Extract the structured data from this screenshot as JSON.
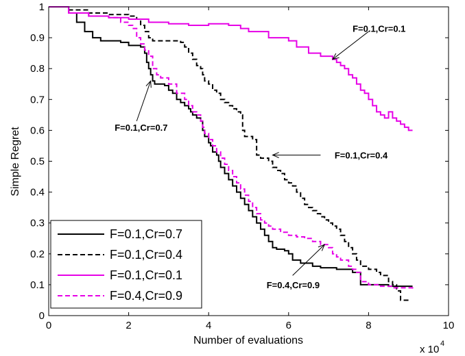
{
  "chart_data": {
    "type": "line",
    "title": "",
    "xlabel": "Number of evaluations",
    "ylabel": "Simple Regret",
    "x_multiplier_label": "x 10",
    "x_multiplier_exp": "4",
    "xlim": [
      0,
      10
    ],
    "ylim": [
      0,
      1
    ],
    "xticks": [
      "0",
      "2",
      "4",
      "6",
      "8",
      "10"
    ],
    "yticks": [
      "0",
      "0.1",
      "0.2",
      "0.3",
      "0.4",
      "0.5",
      "0.6",
      "0.7",
      "0.8",
      "0.9",
      "1"
    ],
    "grid": false,
    "legend_position": "bottom-left",
    "series": [
      {
        "name": "F=0.1,Cr=0.7",
        "color": "#000000",
        "dash": "solid",
        "points": [
          [
            0,
            1
          ],
          [
            0.5,
            0.98
          ],
          [
            0.7,
            0.95
          ],
          [
            0.9,
            0.92
          ],
          [
            1.1,
            0.9
          ],
          [
            1.3,
            0.89
          ],
          [
            1.8,
            0.885
          ],
          [
            2.0,
            0.875
          ],
          [
            2.3,
            0.87
          ],
          [
            2.4,
            0.85
          ],
          [
            2.45,
            0.82
          ],
          [
            2.5,
            0.8
          ],
          [
            2.55,
            0.78
          ],
          [
            2.6,
            0.76
          ],
          [
            2.65,
            0.75
          ],
          [
            2.9,
            0.745
          ],
          [
            3.0,
            0.73
          ],
          [
            3.1,
            0.72
          ],
          [
            3.2,
            0.7
          ],
          [
            3.3,
            0.69
          ],
          [
            3.4,
            0.68
          ],
          [
            3.5,
            0.67
          ],
          [
            3.55,
            0.66
          ],
          [
            3.6,
            0.65
          ],
          [
            3.7,
            0.64
          ],
          [
            3.8,
            0.63
          ],
          [
            3.85,
            0.6
          ],
          [
            3.9,
            0.58
          ],
          [
            4.0,
            0.56
          ],
          [
            4.05,
            0.55
          ],
          [
            4.1,
            0.53
          ],
          [
            4.2,
            0.52
          ],
          [
            4.25,
            0.5
          ],
          [
            4.3,
            0.48
          ],
          [
            4.4,
            0.46
          ],
          [
            4.5,
            0.44
          ],
          [
            4.6,
            0.42
          ],
          [
            4.7,
            0.4
          ],
          [
            4.8,
            0.38
          ],
          [
            4.9,
            0.36
          ],
          [
            5.0,
            0.34
          ],
          [
            5.1,
            0.32
          ],
          [
            5.2,
            0.3
          ],
          [
            5.3,
            0.28
          ],
          [
            5.4,
            0.26
          ],
          [
            5.5,
            0.24
          ],
          [
            5.6,
            0.22
          ],
          [
            5.7,
            0.215
          ],
          [
            5.9,
            0.21
          ],
          [
            6.0,
            0.2
          ],
          [
            6.1,
            0.18
          ],
          [
            6.3,
            0.17
          ],
          [
            6.6,
            0.16
          ],
          [
            6.8,
            0.155
          ],
          [
            7.2,
            0.15
          ],
          [
            7.6,
            0.14
          ],
          [
            7.8,
            0.1
          ],
          [
            8.5,
            0.095
          ],
          [
            9.1,
            0.095
          ]
        ]
      },
      {
        "name": "F=0.1,Cr=0.4",
        "color": "#000000",
        "dash": "dashed",
        "points": [
          [
            0,
            1
          ],
          [
            0.5,
            0.99
          ],
          [
            1.0,
            0.98
          ],
          [
            1.5,
            0.975
          ],
          [
            2.0,
            0.97
          ],
          [
            2.2,
            0.96
          ],
          [
            2.3,
            0.94
          ],
          [
            2.4,
            0.92
          ],
          [
            2.5,
            0.9
          ],
          [
            2.6,
            0.89
          ],
          [
            3.3,
            0.885
          ],
          [
            3.4,
            0.87
          ],
          [
            3.5,
            0.85
          ],
          [
            3.6,
            0.83
          ],
          [
            3.7,
            0.81
          ],
          [
            3.8,
            0.8
          ],
          [
            3.85,
            0.78
          ],
          [
            3.9,
            0.76
          ],
          [
            4.0,
            0.75
          ],
          [
            4.1,
            0.73
          ],
          [
            4.2,
            0.72
          ],
          [
            4.3,
            0.7
          ],
          [
            4.4,
            0.69
          ],
          [
            4.5,
            0.68
          ],
          [
            4.6,
            0.67
          ],
          [
            4.7,
            0.66
          ],
          [
            4.8,
            0.65
          ],
          [
            4.85,
            0.6
          ],
          [
            4.9,
            0.58
          ],
          [
            5.1,
            0.57
          ],
          [
            5.2,
            0.52
          ],
          [
            5.3,
            0.51
          ],
          [
            5.5,
            0.5
          ],
          [
            5.6,
            0.48
          ],
          [
            5.7,
            0.47
          ],
          [
            5.8,
            0.46
          ],
          [
            5.9,
            0.44
          ],
          [
            6.0,
            0.43
          ],
          [
            6.1,
            0.42
          ],
          [
            6.2,
            0.4
          ],
          [
            6.3,
            0.38
          ],
          [
            6.4,
            0.36
          ],
          [
            6.5,
            0.35
          ],
          [
            6.6,
            0.34
          ],
          [
            6.7,
            0.33
          ],
          [
            6.8,
            0.32
          ],
          [
            6.9,
            0.31
          ],
          [
            7.0,
            0.3
          ],
          [
            7.1,
            0.29
          ],
          [
            7.2,
            0.28
          ],
          [
            7.3,
            0.26
          ],
          [
            7.4,
            0.24
          ],
          [
            7.5,
            0.22
          ],
          [
            7.6,
            0.2
          ],
          [
            7.7,
            0.18
          ],
          [
            7.8,
            0.16
          ],
          [
            8.0,
            0.15
          ],
          [
            8.2,
            0.14
          ],
          [
            8.3,
            0.13
          ],
          [
            8.5,
            0.11
          ],
          [
            8.6,
            0.1
          ],
          [
            8.7,
            0.08
          ],
          [
            8.8,
            0.05
          ],
          [
            9.0,
            0.045
          ]
        ]
      },
      {
        "name": "F=0.1,Cr=0.1",
        "color": "#e600e6",
        "dash": "solid",
        "points": [
          [
            0,
            1
          ],
          [
            0.5,
            0.98
          ],
          [
            1.0,
            0.97
          ],
          [
            1.5,
            0.965
          ],
          [
            2.0,
            0.96
          ],
          [
            2.5,
            0.95
          ],
          [
            3.0,
            0.945
          ],
          [
            3.5,
            0.94
          ],
          [
            4.0,
            0.945
          ],
          [
            4.5,
            0.94
          ],
          [
            4.8,
            0.93
          ],
          [
            5.0,
            0.92
          ],
          [
            5.5,
            0.9
          ],
          [
            6.0,
            0.89
          ],
          [
            6.2,
            0.87
          ],
          [
            6.5,
            0.85
          ],
          [
            6.8,
            0.84
          ],
          [
            7.0,
            0.84
          ],
          [
            7.1,
            0.83
          ],
          [
            7.2,
            0.82
          ],
          [
            7.3,
            0.81
          ],
          [
            7.4,
            0.8
          ],
          [
            7.5,
            0.78
          ],
          [
            7.6,
            0.77
          ],
          [
            7.7,
            0.75
          ],
          [
            7.8,
            0.73
          ],
          [
            7.9,
            0.72
          ],
          [
            8.0,
            0.7
          ],
          [
            8.1,
            0.68
          ],
          [
            8.2,
            0.66
          ],
          [
            8.3,
            0.65
          ],
          [
            8.4,
            0.64
          ],
          [
            8.5,
            0.66
          ],
          [
            8.6,
            0.64
          ],
          [
            8.7,
            0.63
          ],
          [
            8.8,
            0.62
          ],
          [
            8.9,
            0.61
          ],
          [
            9.0,
            0.6
          ],
          [
            9.1,
            0.6
          ]
        ]
      },
      {
        "name": "F=0.4,Cr=0.9",
        "color": "#e600e6",
        "dash": "dashed",
        "points": [
          [
            0,
            1
          ],
          [
            0.5,
            0.98
          ],
          [
            1.0,
            0.97
          ],
          [
            1.5,
            0.965
          ],
          [
            1.8,
            0.95
          ],
          [
            2.0,
            0.94
          ],
          [
            2.1,
            0.93
          ],
          [
            2.2,
            0.9
          ],
          [
            2.3,
            0.88
          ],
          [
            2.4,
            0.86
          ],
          [
            2.5,
            0.84
          ],
          [
            2.6,
            0.8
          ],
          [
            2.7,
            0.78
          ],
          [
            2.8,
            0.77
          ],
          [
            3.0,
            0.75
          ],
          [
            3.2,
            0.72
          ],
          [
            3.4,
            0.7
          ],
          [
            3.5,
            0.68
          ],
          [
            3.6,
            0.66
          ],
          [
            3.7,
            0.65
          ],
          [
            3.8,
            0.63
          ],
          [
            3.85,
            0.61
          ],
          [
            3.9,
            0.59
          ],
          [
            4.0,
            0.57
          ],
          [
            4.1,
            0.55
          ],
          [
            4.2,
            0.53
          ],
          [
            4.3,
            0.51
          ],
          [
            4.4,
            0.49
          ],
          [
            4.5,
            0.47
          ],
          [
            4.6,
            0.45
          ],
          [
            4.7,
            0.43
          ],
          [
            4.8,
            0.41
          ],
          [
            4.9,
            0.39
          ],
          [
            5.0,
            0.37
          ],
          [
            5.1,
            0.35
          ],
          [
            5.2,
            0.33
          ],
          [
            5.3,
            0.31
          ],
          [
            5.4,
            0.3
          ],
          [
            5.5,
            0.29
          ],
          [
            5.6,
            0.28
          ],
          [
            5.8,
            0.27
          ],
          [
            6.0,
            0.26
          ],
          [
            6.2,
            0.255
          ],
          [
            6.4,
            0.25
          ],
          [
            6.6,
            0.24
          ],
          [
            6.8,
            0.23
          ],
          [
            7.0,
            0.22
          ],
          [
            7.1,
            0.2
          ],
          [
            7.2,
            0.19
          ],
          [
            7.3,
            0.18
          ],
          [
            7.5,
            0.16
          ],
          [
            7.6,
            0.15
          ],
          [
            7.7,
            0.14
          ],
          [
            7.8,
            0.11
          ],
          [
            8.0,
            0.1
          ],
          [
            8.3,
            0.095
          ],
          [
            8.6,
            0.09
          ],
          [
            9.1,
            0.08
          ]
        ]
      }
    ],
    "annotations": [
      {
        "text": "F=0.1,Cr=0.1",
        "tip": [
          7.1,
          0.83
        ],
        "anchor": [
          8.0,
          0.92
        ],
        "label_at": [
          7.6,
          0.93
        ]
      },
      {
        "text": "F=0.1,Cr=0.7",
        "tip": [
          2.55,
          0.76
        ],
        "anchor": [
          2.2,
          0.63
        ],
        "label_at": [
          1.65,
          0.61
        ]
      },
      {
        "text": "F=0.1,Cr=0.4",
        "tip": [
          5.6,
          0.52
        ],
        "anchor": [
          6.8,
          0.52
        ],
        "label_at": [
          7.15,
          0.52
        ]
      },
      {
        "text": "F=0.4,Cr=0.9",
        "tip": [
          6.9,
          0.23
        ],
        "anchor": [
          6.1,
          0.13
        ],
        "label_at": [
          5.45,
          0.1
        ]
      }
    ]
  }
}
